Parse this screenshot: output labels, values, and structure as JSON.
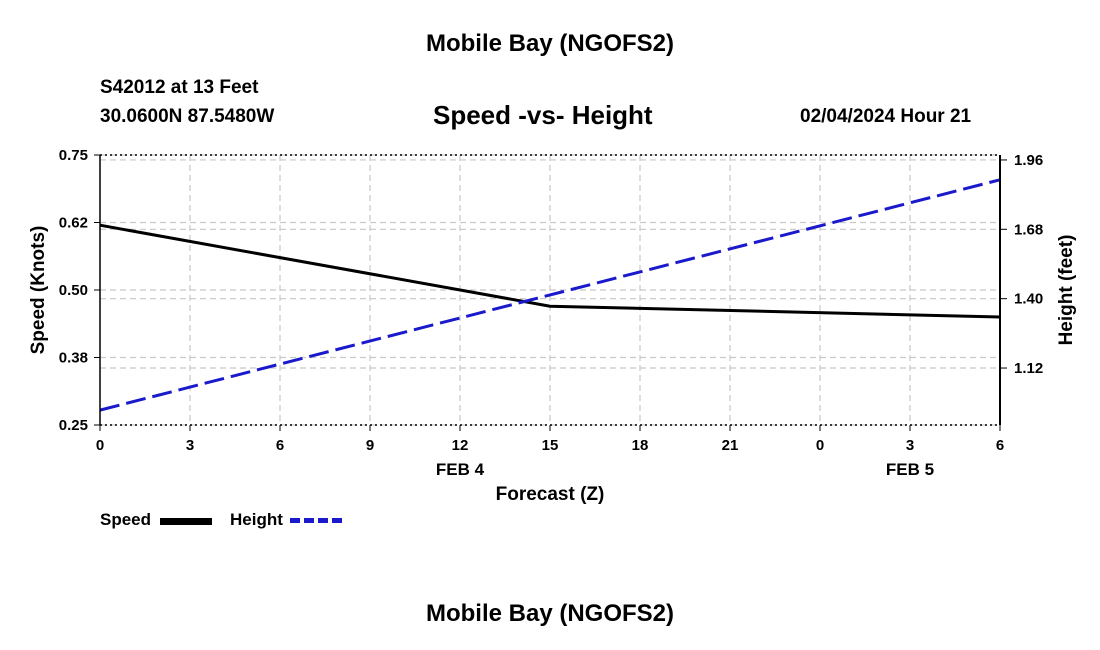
{
  "header": {
    "title": "Mobile Bay (NGOFS2)",
    "station": "S42012 at 13 Feet",
    "coords": "30.0600N  87.5480W",
    "subtitle": "Speed -vs- Height",
    "datetime": "02/04/2024 Hour 21"
  },
  "footer": {
    "title": "Mobile Bay (NGOFS2)"
  },
  "legend": {
    "speed_label": "Speed",
    "height_label": "Height"
  },
  "colors": {
    "speed": "#000000",
    "height": "#1a1acc",
    "grid": "#c8c8c8"
  },
  "chart_data": {
    "type": "line",
    "title": "Speed -vs- Height",
    "xlabel": "Forecast (Z)",
    "ylabel": "Speed (Knots)",
    "y2label": "Height (feet)",
    "x_ticks": [
      "0",
      "3",
      "6",
      "9",
      "12",
      "15",
      "18",
      "21",
      "0",
      "3",
      "6"
    ],
    "x_date_labels": [
      {
        "label": "FEB 4",
        "at_tick_index": 4
      },
      {
        "label": "FEB 5",
        "at_tick_index": 9
      }
    ],
    "xlim": [
      0,
      30
    ],
    "ylim": [
      0.25,
      0.75
    ],
    "y_ticks": [
      "0.25",
      "0.38",
      "0.50",
      "0.62",
      "0.75"
    ],
    "y2lim": [
      0.89,
      1.98
    ],
    "y2_ticks": [
      "1.12",
      "1.40",
      "1.68",
      "1.96"
    ],
    "series": [
      {
        "name": "Speed",
        "axis": "left",
        "style": "solid",
        "x": [
          0,
          15,
          30
        ],
        "values": [
          0.62,
          0.47,
          0.45
        ]
      },
      {
        "name": "Height",
        "axis": "right",
        "style": "dashed",
        "x": [
          0,
          30
        ],
        "values": [
          0.95,
          1.88
        ]
      }
    ]
  }
}
